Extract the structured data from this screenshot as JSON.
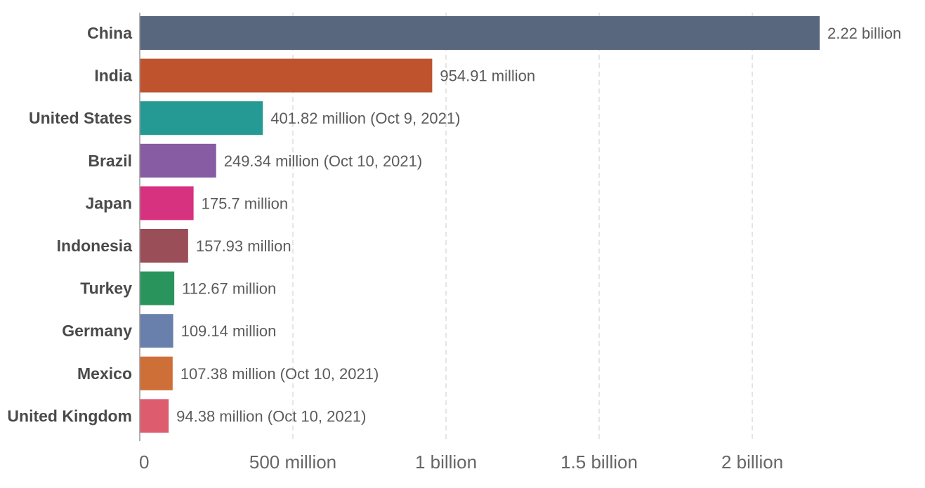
{
  "chart_data": {
    "type": "bar",
    "orientation": "horizontal",
    "categories": [
      "China",
      "India",
      "United States",
      "Brazil",
      "Japan",
      "Indonesia",
      "Turkey",
      "Germany",
      "Mexico",
      "United Kingdom"
    ],
    "values": [
      2220000000,
      954910000,
      401820000,
      249340000,
      175700000,
      157930000,
      112670000,
      109140000,
      107380000,
      94380000
    ],
    "value_labels": [
      "2.22 billion",
      "954.91 million",
      "401.82 million (Oct 9, 2021)",
      "249.34 million (Oct 10, 2021)",
      "175.7 million",
      "157.93 million",
      "112.67 million",
      "109.14 million",
      "107.38 million (Oct 10, 2021)",
      "94.38 million (Oct 10, 2021)"
    ],
    "colors": [
      "#58677e",
      "#be532d",
      "#259a94",
      "#875ca2",
      "#d73280",
      "#9a4f58",
      "#29955c",
      "#6980ad",
      "#cf6f38",
      "#dd5c6d"
    ],
    "x_ticks": [
      0,
      500000000,
      1000000000,
      1500000000,
      2000000000
    ],
    "x_tick_labels": [
      "0",
      "500 million",
      "1 billion",
      "1.5 billion",
      "2 billion"
    ],
    "xlim": [
      0,
      2220000000
    ],
    "title": "",
    "xlabel": "",
    "ylabel": "",
    "grid": true,
    "legend": "none"
  }
}
